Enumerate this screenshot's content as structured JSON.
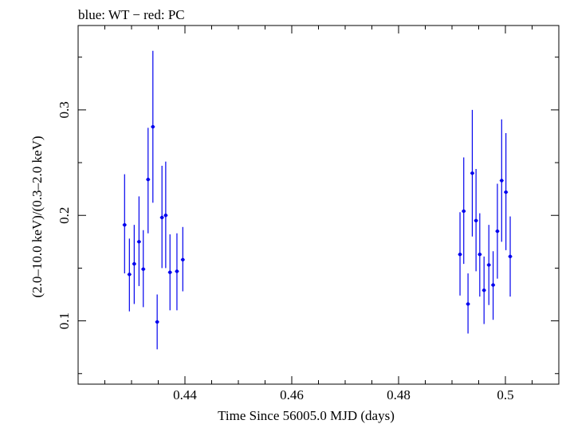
{
  "chart_data": {
    "type": "scatter",
    "title": "blue: WT − red: PC",
    "xlabel": "Time Since 56005.0 MJD (days)",
    "ylabel": "(2.0–10.0 keV)/(0.3–2.0 keV)",
    "xlim": [
      0.42,
      0.51
    ],
    "ylim": [
      0.04,
      0.38
    ],
    "x_ticks": [
      0.44,
      0.46,
      0.48,
      0.5
    ],
    "x_tick_labels": [
      "0.44",
      "0.46",
      "0.48",
      "0.5"
    ],
    "y_ticks": [
      0.1,
      0.2,
      0.3
    ],
    "y_tick_labels": [
      "0.1",
      "0.2",
      "0.3"
    ],
    "grid": false,
    "series": [
      {
        "color": "#0000ee",
        "points": [
          {
            "x": 0.4287,
            "y": 0.191,
            "lo": 0.145,
            "hi": 0.239
          },
          {
            "x": 0.4296,
            "y": 0.144,
            "lo": 0.109,
            "hi": 0.178
          },
          {
            "x": 0.4305,
            "y": 0.154,
            "lo": 0.116,
            "hi": 0.191
          },
          {
            "x": 0.4314,
            "y": 0.175,
            "lo": 0.133,
            "hi": 0.218
          },
          {
            "x": 0.4322,
            "y": 0.149,
            "lo": 0.113,
            "hi": 0.186
          },
          {
            "x": 0.4331,
            "y": 0.234,
            "lo": 0.183,
            "hi": 0.283
          },
          {
            "x": 0.434,
            "y": 0.284,
            "lo": 0.212,
            "hi": 0.356
          },
          {
            "x": 0.4348,
            "y": 0.099,
            "lo": 0.073,
            "hi": 0.125
          },
          {
            "x": 0.4357,
            "y": 0.198,
            "lo": 0.15,
            "hi": 0.247
          },
          {
            "x": 0.4364,
            "y": 0.2,
            "lo": 0.15,
            "hi": 0.251
          },
          {
            "x": 0.4372,
            "y": 0.146,
            "lo": 0.11,
            "hi": 0.182
          },
          {
            "x": 0.4385,
            "y": 0.147,
            "lo": 0.11,
            "hi": 0.183
          },
          {
            "x": 0.4396,
            "y": 0.158,
            "lo": 0.128,
            "hi": 0.189
          },
          {
            "x": 0.4915,
            "y": 0.163,
            "lo": 0.124,
            "hi": 0.203
          },
          {
            "x": 0.4922,
            "y": 0.204,
            "lo": 0.154,
            "hi": 0.255
          },
          {
            "x": 0.493,
            "y": 0.116,
            "lo": 0.088,
            "hi": 0.145
          },
          {
            "x": 0.4938,
            "y": 0.24,
            "lo": 0.18,
            "hi": 0.3
          },
          {
            "x": 0.4945,
            "y": 0.195,
            "lo": 0.147,
            "hi": 0.244
          },
          {
            "x": 0.4952,
            "y": 0.163,
            "lo": 0.123,
            "hi": 0.202
          },
          {
            "x": 0.496,
            "y": 0.129,
            "lo": 0.097,
            "hi": 0.161
          },
          {
            "x": 0.4969,
            "y": 0.153,
            "lo": 0.115,
            "hi": 0.191
          },
          {
            "x": 0.4977,
            "y": 0.134,
            "lo": 0.101,
            "hi": 0.166
          },
          {
            "x": 0.4985,
            "y": 0.185,
            "lo": 0.14,
            "hi": 0.23
          },
          {
            "x": 0.4993,
            "y": 0.233,
            "lo": 0.175,
            "hi": 0.291
          },
          {
            "x": 0.5001,
            "y": 0.222,
            "lo": 0.167,
            "hi": 0.278
          },
          {
            "x": 0.5009,
            "y": 0.161,
            "lo": 0.123,
            "hi": 0.199
          }
        ]
      }
    ]
  }
}
